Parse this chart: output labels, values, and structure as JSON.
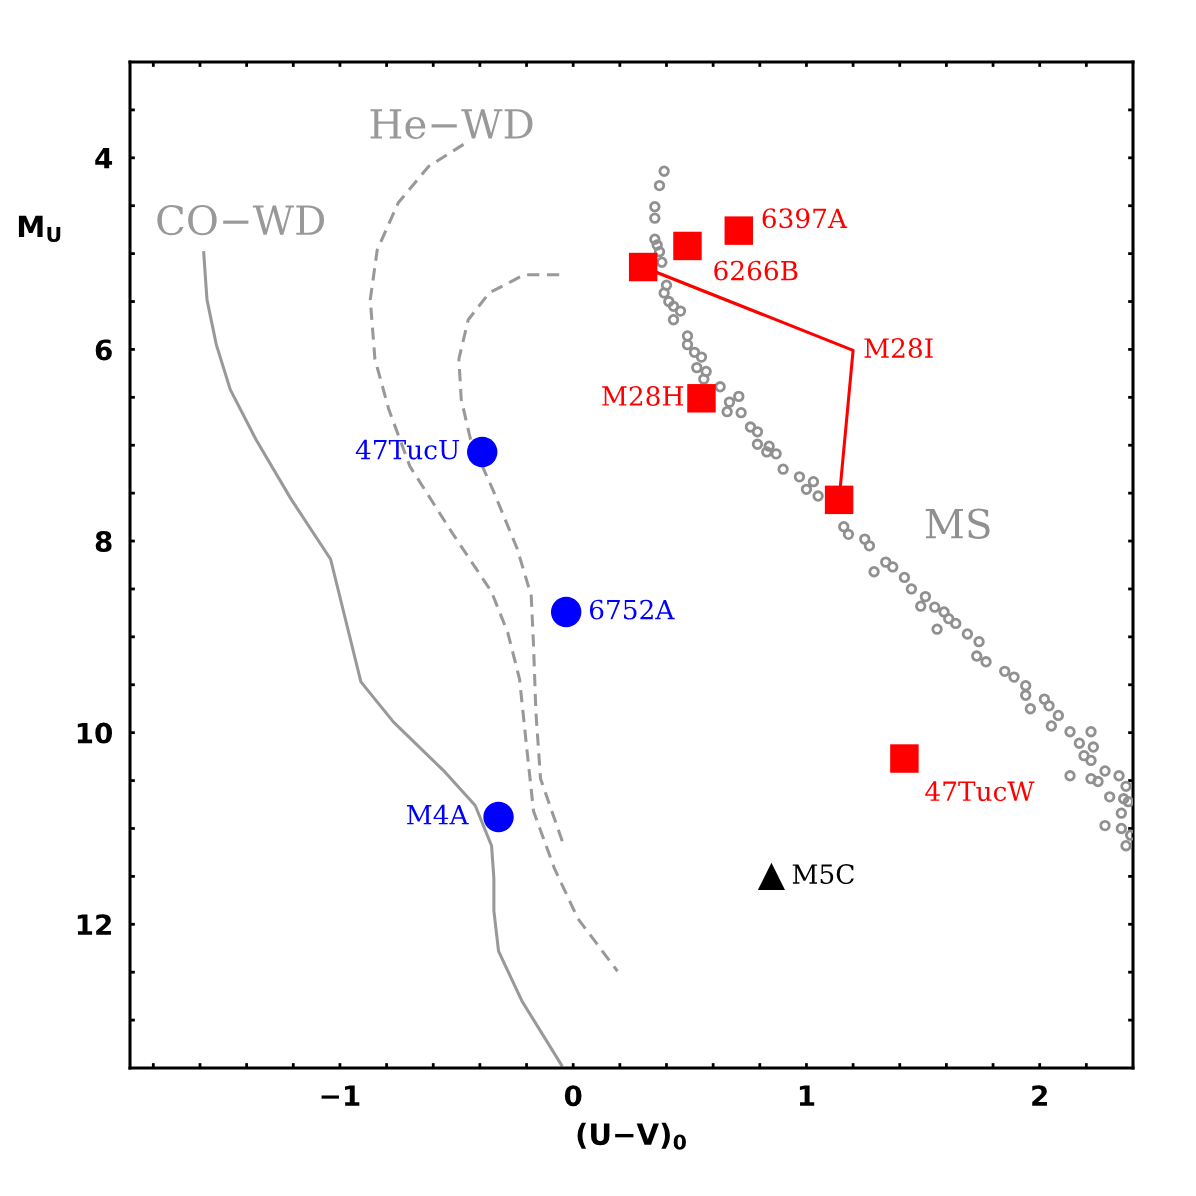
{
  "chart_data": {
    "type": "scatter",
    "xlabel": "(U−V)$_{0}$",
    "ylabel": "M$_{U}$",
    "xlim": [
      -1.9,
      2.4
    ],
    "ylim": [
      13.5,
      3
    ],
    "xticks": [
      {
        "value": -1.8,
        "label": null
      },
      {
        "value": -1.6,
        "label": null
      },
      {
        "value": -1.4,
        "label": null
      },
      {
        "value": -1.2,
        "label": null
      },
      {
        "value": -1,
        "label": "−1"
      },
      {
        "value": -0.8,
        "label": null
      },
      {
        "value": -0.6,
        "label": null
      },
      {
        "value": -0.4,
        "label": null
      },
      {
        "value": -0.2,
        "label": null
      },
      0,
      {
        "value": 0.2,
        "label": null
      },
      {
        "value": 0.4,
        "label": null
      },
      {
        "value": 0.6,
        "label": null
      },
      {
        "value": 0.8,
        "label": null
      },
      1,
      {
        "value": 1.2,
        "label": null
      },
      {
        "value": 1.4,
        "label": null
      },
      {
        "value": 1.6,
        "label": null
      },
      {
        "value": 1.8,
        "label": null
      },
      2,
      {
        "value": 2.2,
        "label": null
      }
    ],
    "yticks": [
      {
        "value": 3.5,
        "label": null
      },
      4,
      {
        "value": 4.5,
        "label": null
      },
      {
        "value": 5,
        "label": null
      },
      {
        "value": 5.5,
        "label": null
      },
      6,
      {
        "value": 6.5,
        "label": null
      },
      {
        "value": 7,
        "label": null
      },
      {
        "value": 7.5,
        "label": null
      },
      8,
      {
        "value": 8.5,
        "label": null
      },
      {
        "value": 9,
        "label": null
      },
      {
        "value": 9.5,
        "label": null
      },
      10,
      {
        "value": 10.5,
        "label": null
      },
      {
        "value": 11,
        "label": null
      },
      {
        "value": 11.5,
        "label": null
      },
      12,
      {
        "value": 12.5,
        "label": null
      },
      {
        "value": 13,
        "label": null
      }
    ],
    "series": [
      {
        "type": "line",
        "line_style": "solid",
        "color": "#999999",
        "x": [
          -1.584,
          -1.57,
          -1.53,
          -1.47,
          -1.36,
          -1.21,
          -1.04,
          -0.91,
          -0.77,
          -0.55,
          -0.42,
          -0.35,
          -0.34,
          -0.34,
          -0.32,
          -0.22,
          -0.05
        ],
        "values": [
          4.99,
          5.48,
          5.95,
          6.42,
          6.94,
          7.56,
          8.19,
          9.47,
          9.89,
          10.41,
          10.76,
          11.18,
          11.52,
          11.86,
          12.28,
          12.8,
          13.47
        ]
      },
      {
        "type": "line",
        "line_style": "dashed",
        "color": "#999999",
        "x": [
          -0.47,
          -0.62,
          -0.75,
          -0.84,
          -0.87,
          -0.85,
          -0.79,
          -0.7,
          -0.52,
          -0.35,
          -0.28,
          -0.23,
          -0.2,
          -0.17,
          -0.08,
          0.02,
          0.19
        ],
        "values": [
          3.86,
          4.09,
          4.47,
          4.96,
          5.48,
          6.1,
          6.63,
          7.22,
          7.91,
          8.53,
          8.96,
          9.44,
          10.14,
          10.82,
          11.42,
          11.94,
          12.49
        ]
      },
      {
        "type": "line",
        "line_style": "dashed",
        "color": "#999999",
        "x": [
          -0.06,
          -0.21,
          -0.36,
          -0.45,
          -0.49,
          -0.48,
          -0.44,
          -0.34,
          -0.24,
          -0.18,
          -0.17,
          -0.16,
          -0.14,
          -0.04
        ],
        "values": [
          5.22,
          5.22,
          5.41,
          5.69,
          6.1,
          6.52,
          6.94,
          7.49,
          8.08,
          8.57,
          9.09,
          9.78,
          10.48,
          11.18
        ]
      },
      {
        "marker": "circle",
        "color": "#909090",
        "x": [
          0.39,
          0.37,
          0.35,
          0.35,
          0.35,
          0.36,
          0.37,
          0.38,
          0.4,
          0.39,
          0.41,
          0.43,
          0.46,
          0.43,
          0.49,
          0.49,
          0.52,
          0.55,
          0.53,
          0.57,
          0.56,
          0.63,
          0.71,
          0.67,
          0.66,
          0.72,
          0.76,
          0.79,
          0.79,
          0.84,
          0.83,
          0.87,
          0.9,
          0.97,
          1.03,
          1.0,
          1.05,
          1.16,
          1.18,
          1.25,
          1.27,
          1.29,
          1.34,
          1.37,
          1.42,
          1.45,
          1.49,
          1.51,
          1.55,
          1.56,
          1.59,
          1.61,
          1.64,
          1.69,
          1.74,
          1.73,
          1.77,
          1.85,
          1.89,
          1.94,
          1.94,
          1.96,
          2.02,
          2.04,
          2.08,
          2.05,
          2.13,
          2.17,
          2.22,
          2.23,
          2.19,
          2.22,
          2.13,
          2.22,
          2.28,
          2.25,
          2.3,
          2.34,
          2.37,
          2.36,
          2.38,
          2.35,
          2.28,
          2.35,
          2.39,
          2.37
        ],
        "values": [
          4.14,
          4.29,
          4.51,
          4.63,
          4.85,
          4.91,
          4.98,
          5.09,
          5.33,
          5.41,
          5.5,
          5.55,
          5.6,
          5.69,
          5.86,
          5.95,
          6.03,
          6.08,
          6.19,
          6.23,
          6.31,
          6.39,
          6.49,
          6.55,
          6.65,
          6.66,
          6.81,
          6.86,
          6.99,
          7.01,
          7.07,
          7.09,
          7.25,
          7.33,
          7.38,
          7.46,
          7.53,
          7.85,
          7.93,
          7.98,
          8.05,
          8.32,
          8.22,
          8.27,
          8.38,
          8.5,
          8.68,
          8.58,
          8.69,
          8.92,
          8.74,
          8.81,
          8.86,
          8.97,
          9.05,
          9.2,
          9.26,
          9.36,
          9.42,
          9.51,
          9.61,
          9.75,
          9.65,
          9.72,
          9.82,
          9.93,
          9.99,
          10.11,
          9.99,
          10.15,
          10.24,
          10.29,
          10.45,
          10.48,
          10.4,
          10.51,
          10.67,
          10.45,
          10.56,
          10.69,
          10.72,
          10.84,
          10.97,
          11.0,
          11.07,
          11.18
        ]
      },
      {
        "type": "line",
        "line_style": "solid",
        "color": "#ff0000",
        "x": [
          0.3,
          1.2,
          1.14
        ],
        "values": [
          5.14,
          6.01,
          7.57
        ]
      },
      {
        "marker": "square",
        "color": "#ff0000",
        "x": [
          0.71,
          0.49,
          0.3,
          0.55,
          1.14,
          1.42
        ],
        "values": [
          4.76,
          4.92,
          5.14,
          6.51,
          7.57,
          10.27
        ]
      },
      {
        "marker": "circle",
        "color": "#0000ff",
        "x": [
          -0.39,
          -0.03,
          -0.32
        ],
        "values": [
          7.07,
          8.74,
          10.88
        ]
      },
      {
        "marker": "triangle",
        "color": "#000000",
        "x": [
          0.85
        ],
        "values": [
          11.5
        ]
      }
    ],
    "annotations": [
      {
        "text": "6397A",
        "x": 0.71,
        "y": 4.76
      },
      {
        "text": "6266B",
        "x": 0.49,
        "y": 4.92
      },
      {
        "text": "M28I",
        "x": 1.2,
        "y": 6.01
      },
      {
        "text": "M28H",
        "x": 0.55,
        "y": 6.51
      },
      {
        "text": "47TucW",
        "x": 1.42,
        "y": 10.27
      },
      {
        "text": "47TucU",
        "x": -0.39,
        "y": 7.07
      },
      {
        "text": "6752A",
        "x": -0.03,
        "y": 8.74
      },
      {
        "text": "M4A",
        "x": -0.32,
        "y": 10.88
      },
      {
        "text": "M5C",
        "x": 0.85,
        "y": 11.5
      },
      "CO−WD",
      "He−WD",
      "MS"
    ]
  }
}
